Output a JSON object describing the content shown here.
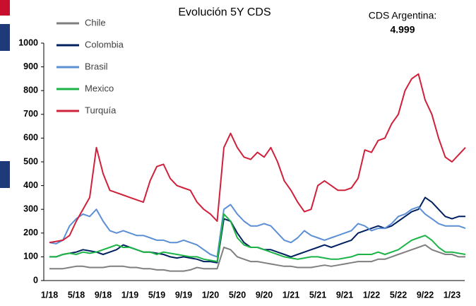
{
  "chart_data": {
    "type": "line",
    "title": "Evolución 5Y CDS",
    "annotations": [
      "CDS Argentina:",
      "4.999"
    ],
    "categories": [
      "1/18",
      null,
      null,
      null,
      "5/18",
      null,
      null,
      null,
      "9/18",
      null,
      null,
      null,
      "1/19",
      null,
      null,
      null,
      "5/19",
      null,
      null,
      null,
      "9/19",
      null,
      null,
      null,
      "1/20",
      null,
      null,
      null,
      "5/20",
      null,
      null,
      null,
      "9/20",
      null,
      null,
      null,
      "1/21",
      null,
      null,
      null,
      "5/21",
      null,
      null,
      null,
      "9/21",
      null,
      null,
      null,
      "1/22",
      null,
      null,
      null,
      "5/22",
      null,
      null,
      null,
      "9/22",
      null,
      null,
      null,
      "1/23",
      null,
      null
    ],
    "ylim": [
      0,
      1000
    ],
    "yticks": [
      0,
      100,
      200,
      300,
      400,
      500,
      600,
      700,
      800,
      900,
      1000
    ],
    "grid": false,
    "series": [
      {
        "name": "Chile",
        "color": "#7f7f7f",
        "values": [
          50,
          50,
          50,
          55,
          60,
          60,
          55,
          55,
          55,
          60,
          60,
          60,
          55,
          55,
          50,
          50,
          45,
          45,
          40,
          40,
          40,
          45,
          55,
          50,
          50,
          50,
          140,
          130,
          100,
          90,
          80,
          80,
          75,
          70,
          65,
          60,
          60,
          55,
          55,
          55,
          60,
          65,
          60,
          65,
          70,
          75,
          80,
          80,
          80,
          90,
          90,
          100,
          110,
          120,
          130,
          140,
          150,
          130,
          120,
          110,
          110,
          100,
          100
        ]
      },
      {
        "name": "Colombia",
        "color": "#002060",
        "values": [
          100,
          100,
          110,
          115,
          120,
          130,
          125,
          120,
          110,
          120,
          130,
          150,
          140,
          130,
          120,
          120,
          115,
          110,
          100,
          95,
          100,
          95,
          90,
          80,
          80,
          75,
          260,
          250,
          200,
          160,
          140,
          140,
          130,
          130,
          120,
          110,
          100,
          110,
          120,
          130,
          140,
          150,
          140,
          150,
          160,
          170,
          200,
          210,
          220,
          230,
          220,
          230,
          250,
          270,
          290,
          300,
          350,
          330,
          300,
          270,
          260,
          270,
          270
        ]
      },
      {
        "name": "Brasil",
        "color": "#5b8fd6",
        "values": [
          160,
          155,
          170,
          230,
          260,
          280,
          270,
          300,
          250,
          210,
          200,
          210,
          200,
          190,
          190,
          180,
          170,
          170,
          160,
          160,
          170,
          160,
          150,
          130,
          110,
          100,
          300,
          320,
          280,
          250,
          230,
          230,
          240,
          230,
          200,
          170,
          160,
          180,
          210,
          190,
          180,
          170,
          180,
          190,
          200,
          210,
          240,
          230,
          210,
          220,
          220,
          240,
          270,
          280,
          300,
          310,
          280,
          260,
          240,
          230,
          230,
          230,
          220
        ]
      },
      {
        "name": "Mexico",
        "color": "#1db447",
        "values": [
          100,
          100,
          110,
          115,
          110,
          120,
          115,
          120,
          130,
          140,
          150,
          140,
          140,
          130,
          120,
          120,
          110,
          120,
          115,
          110,
          105,
          100,
          100,
          90,
          85,
          80,
          280,
          250,
          180,
          150,
          140,
          140,
          130,
          120,
          110,
          100,
          95,
          90,
          95,
          100,
          100,
          95,
          90,
          90,
          95,
          100,
          110,
          110,
          110,
          120,
          110,
          120,
          130,
          150,
          170,
          180,
          190,
          170,
          140,
          120,
          120,
          115,
          110
        ]
      },
      {
        "name": "Turquía",
        "color": "#d0203a",
        "values": [
          160,
          165,
          170,
          190,
          250,
          300,
          350,
          560,
          450,
          380,
          370,
          360,
          350,
          340,
          330,
          420,
          480,
          490,
          430,
          400,
          390,
          380,
          330,
          300,
          280,
          250,
          560,
          620,
          560,
          520,
          510,
          540,
          520,
          560,
          500,
          420,
          380,
          330,
          290,
          300,
          400,
          420,
          400,
          380,
          380,
          390,
          430,
          550,
          540,
          590,
          600,
          660,
          700,
          800,
          850,
          870,
          760,
          700,
          600,
          520,
          500,
          530,
          560
        ]
      }
    ]
  }
}
